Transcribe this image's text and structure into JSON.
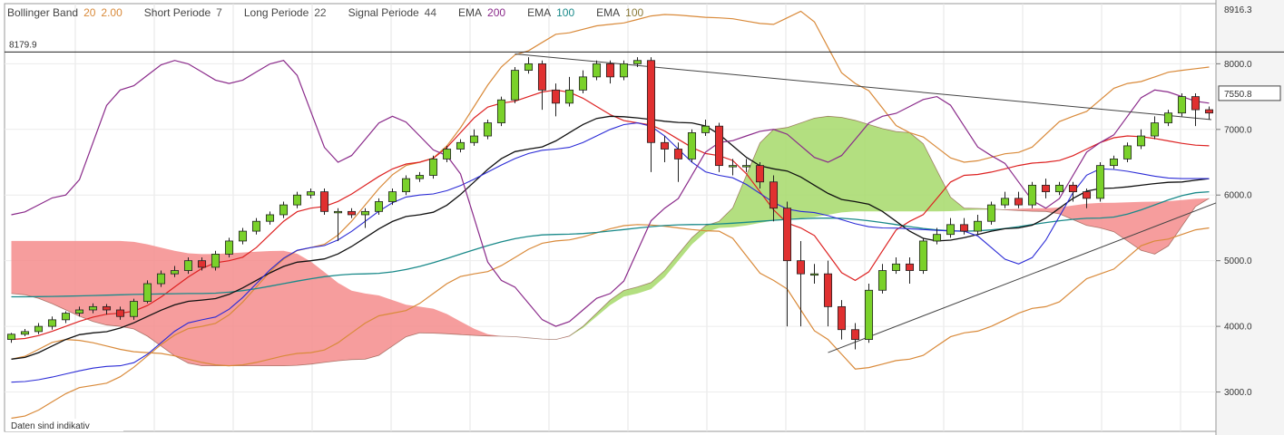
{
  "legend": [
    {
      "name": "Bollinger Band",
      "params": "20",
      "params2": "2.00",
      "color": "#d98a3a"
    },
    {
      "name": "Short Periode",
      "params": "7",
      "color": "#555555"
    },
    {
      "name": "Long Periode",
      "params": "22",
      "color": "#555555"
    },
    {
      "name": "Signal Periode",
      "params": "44",
      "color": "#555555"
    },
    {
      "name": "EMA",
      "params": "200",
      "color": "#8a2a8a"
    },
    {
      "name": "EMA",
      "params": "100",
      "color": "#1a8a8a"
    },
    {
      "name": "EMA",
      "params": "100",
      "color": "#8a7a3a"
    }
  ],
  "footnote": "Daten sind indikativ",
  "chart_data": {
    "type": "candlestick",
    "ylim": [
      2400,
      8916.3
    ],
    "y_ticks": [
      "3000.0",
      "4000.0",
      "5000.0",
      "6000.0",
      "7000.0",
      "8000.0"
    ],
    "y_top_label": "8916.3",
    "ref_line": {
      "value": 8179.9,
      "label": "8179.9"
    },
    "last_price": {
      "value": 7550.8,
      "label": "7550.8"
    },
    "n": 89,
    "candles": [
      [
        3800,
        3880,
        3750,
        3900
      ],
      [
        3880,
        3920,
        3850,
        3960
      ],
      [
        3920,
        4000,
        3880,
        4050
      ],
      [
        4000,
        4100,
        3950,
        4150
      ],
      [
        4100,
        4200,
        4050,
        4230
      ],
      [
        4200,
        4250,
        4150,
        4300
      ],
      [
        4250,
        4300,
        4200,
        4350
      ],
      [
        4300,
        4250,
        4180,
        4340
      ],
      [
        4250,
        4150,
        4100,
        4300
      ],
      [
        4150,
        4380,
        4100,
        4420
      ],
      [
        4380,
        4650,
        4350,
        4700
      ],
      [
        4650,
        4800,
        4600,
        4850
      ],
      [
        4800,
        4850,
        4750,
        4920
      ],
      [
        4850,
        5000,
        4800,
        5050
      ],
      [
        5000,
        4900,
        4850,
        5050
      ],
      [
        4900,
        5100,
        4850,
        5150
      ],
      [
        5100,
        5300,
        5050,
        5350
      ],
      [
        5300,
        5450,
        5250,
        5500
      ],
      [
        5450,
        5600,
        5400,
        5650
      ],
      [
        5600,
        5700,
        5550,
        5750
      ],
      [
        5700,
        5850,
        5650,
        5900
      ],
      [
        5850,
        6000,
        5800,
        6050
      ],
      [
        6000,
        6050,
        5950,
        6100
      ],
      [
        6050,
        5750,
        5700,
        6100
      ],
      [
        5750,
        5750,
        5300,
        5800
      ],
      [
        5750,
        5700,
        5650,
        5800
      ],
      [
        5700,
        5750,
        5500,
        5800
      ],
      [
        5750,
        5900,
        5700,
        5950
      ],
      [
        5900,
        6050,
        5850,
        6100
      ],
      [
        6050,
        6250,
        6000,
        6300
      ],
      [
        6250,
        6300,
        6200,
        6350
      ],
      [
        6300,
        6550,
        6250,
        6600
      ],
      [
        6550,
        6700,
        6500,
        6750
      ],
      [
        6700,
        6800,
        6650,
        6850
      ],
      [
        6800,
        6900,
        6750,
        7000
      ],
      [
        6900,
        7100,
        6850,
        7150
      ],
      [
        7100,
        7450,
        7050,
        7500
      ],
      [
        7450,
        7900,
        7400,
        7950
      ],
      [
        7900,
        8000,
        7850,
        8100
      ],
      [
        8000,
        7600,
        7300,
        8050
      ],
      [
        7600,
        7400,
        7200,
        7700
      ],
      [
        7400,
        7600,
        7350,
        7800
      ],
      [
        7600,
        7800,
        7550,
        7900
      ],
      [
        7800,
        8000,
        7750,
        8050
      ],
      [
        8000,
        7800,
        7700,
        8050
      ],
      [
        7800,
        8000,
        7750,
        8050
      ],
      [
        8000,
        8050,
        7950,
        8100
      ],
      [
        8050,
        6800,
        6350,
        8100
      ],
      [
        6800,
        6700,
        6500,
        6900
      ],
      [
        6700,
        6550,
        6200,
        6800
      ],
      [
        6550,
        6950,
        6500,
        7000
      ],
      [
        6950,
        7050,
        6900,
        7150
      ],
      [
        7050,
        6450,
        6350,
        7100
      ],
      [
        6450,
        6450,
        6300,
        6550
      ],
      [
        6450,
        6450,
        6350,
        6550
      ],
      [
        6450,
        6200,
        6100,
        6500
      ],
      [
        6200,
        5800,
        5600,
        6300
      ],
      [
        5800,
        5000,
        4000,
        5900
      ],
      [
        5000,
        4800,
        4000,
        5300
      ],
      [
        4800,
        4800,
        4650,
        4950
      ],
      [
        4800,
        4300,
        4000,
        5000
      ],
      [
        4300,
        3950,
        3800,
        4400
      ],
      [
        3950,
        3800,
        3650,
        4050
      ],
      [
        3800,
        4550,
        3750,
        4650
      ],
      [
        4550,
        4850,
        4500,
        4950
      ],
      [
        4850,
        4950,
        4800,
        5050
      ],
      [
        4950,
        4850,
        4650,
        5050
      ],
      [
        4850,
        5300,
        4800,
        5350
      ],
      [
        5300,
        5400,
        5250,
        5500
      ],
      [
        5400,
        5550,
        5350,
        5650
      ],
      [
        5550,
        5450,
        5400,
        5650
      ],
      [
        5450,
        5600,
        5400,
        5700
      ],
      [
        5600,
        5850,
        5550,
        5900
      ],
      [
        5850,
        5950,
        5800,
        6050
      ],
      [
        5950,
        5850,
        5800,
        6050
      ],
      [
        5850,
        6150,
        5800,
        6200
      ],
      [
        6150,
        6050,
        5950,
        6250
      ],
      [
        6050,
        6150,
        6000,
        6200
      ],
      [
        6150,
        6050,
        5900,
        6200
      ],
      [
        6050,
        5950,
        5800,
        6100
      ],
      [
        5950,
        6450,
        5900,
        6500
      ],
      [
        6450,
        6550,
        6400,
        6600
      ],
      [
        6550,
        6750,
        6500,
        6800
      ],
      [
        6750,
        6900,
        6700,
        7000
      ],
      [
        6900,
        7100,
        6850,
        7200
      ],
      [
        7100,
        7250,
        7050,
        7300
      ],
      [
        7250,
        7500,
        7200,
        7550
      ],
      [
        7500,
        7300,
        7050,
        7550
      ],
      [
        7300,
        7250,
        7150,
        7350
      ]
    ]
  }
}
